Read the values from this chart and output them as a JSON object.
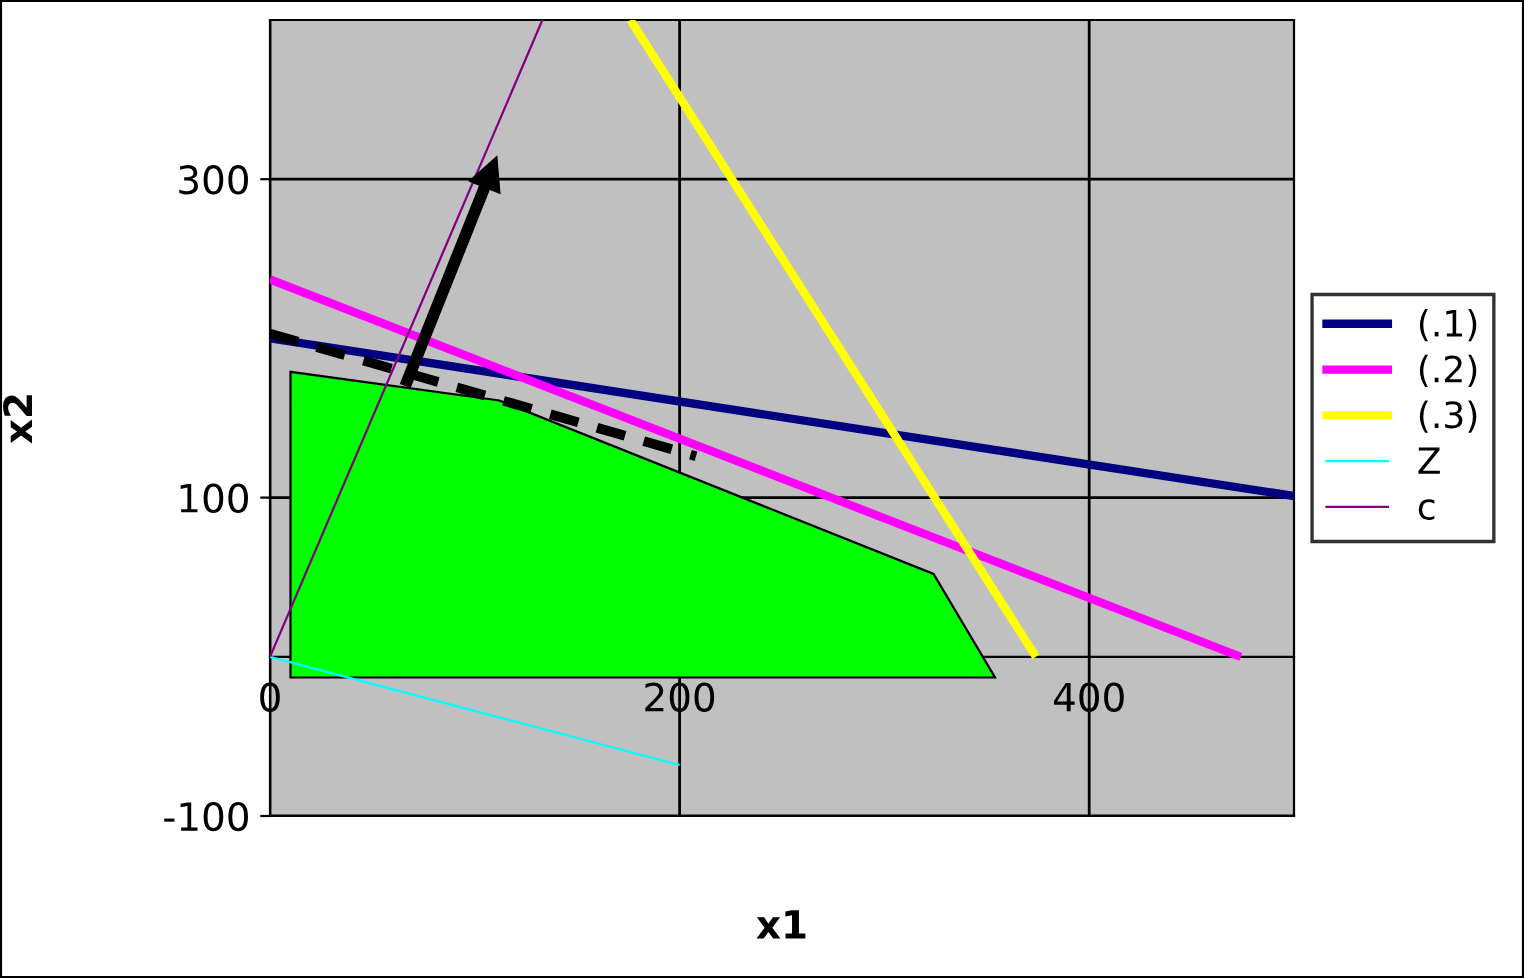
{
  "chart_data": {
    "type": "line",
    "xlabel": "x1",
    "ylabel": "x2",
    "xlim": [
      0,
      500
    ],
    "ylim": [
      -100,
      400
    ],
    "xticks": [
      0,
      200,
      400
    ],
    "yticks": [
      -100,
      100,
      300
    ],
    "grid": true,
    "legend": "right",
    "series": [
      {
        "type": "area",
        "color": "#00ff00",
        "x": [
          10,
          10,
          112,
          324,
          354,
          10
        ],
        "values": [
          -13,
          179,
          161,
          52,
          -13,
          -13
        ]
      },
      {
        "name": "(.1)",
        "color": "#000080",
        "x": [
          0,
          500
        ],
        "values": [
          200,
          101
        ]
      },
      {
        "name": "(.2)",
        "color": "#ff00ff",
        "x": [
          0,
          474
        ],
        "values": [
          237,
          0
        ]
      },
      {
        "name": "(.3)",
        "color": "#ffff00",
        "x": [
          176,
          374
        ],
        "values": [
          400,
          0
        ]
      },
      {
        "name": "Z",
        "color": "#00ffff",
        "x": [
          0,
          200
        ],
        "values": [
          0,
          -68
        ]
      },
      {
        "name": "c",
        "color": "#800080",
        "x": [
          0,
          133
        ],
        "values": [
          0,
          400
        ]
      },
      {
        "color": "#000000",
        "line_style": "dashed",
        "x": [
          0,
          208
        ],
        "values": [
          203,
          126
        ]
      }
    ]
  }
}
